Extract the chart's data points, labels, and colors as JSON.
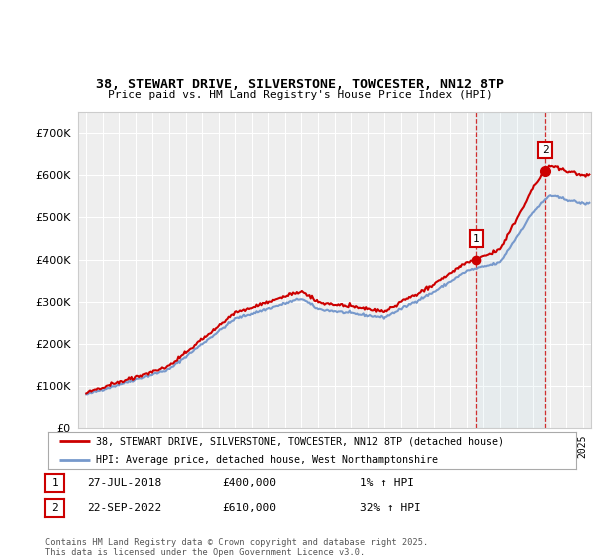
{
  "title_line1": "38, STEWART DRIVE, SILVERSTONE, TOWCESTER, NN12 8TP",
  "title_line2": "Price paid vs. HM Land Registry's House Price Index (HPI)",
  "background_color": "#ffffff",
  "plot_bg_color": "#eeeeee",
  "grid_color": "#ffffff",
  "hpi_color": "#7799cc",
  "price_color": "#cc0000",
  "sale1_date_x": 2018.57,
  "sale1_price": 400000,
  "sale2_date_x": 2022.73,
  "sale2_price": 610000,
  "ylim_min": 0,
  "ylim_max": 750000,
  "xlim_min": 1994.5,
  "xlim_max": 2025.5,
  "legend_line1": "38, STEWART DRIVE, SILVERSTONE, TOWCESTER, NN12 8TP (detached house)",
  "legend_line2": "HPI: Average price, detached house, West Northamptonshire",
  "annotation1_date": "27-JUL-2018",
  "annotation1_price": "£400,000",
  "annotation1_hpi": "1% ↑ HPI",
  "annotation2_date": "22-SEP-2022",
  "annotation2_price": "£610,000",
  "annotation2_hpi": "32% ↑ HPI",
  "footer": "Contains HM Land Registry data © Crown copyright and database right 2025.\nThis data is licensed under the Open Government Licence v3.0."
}
